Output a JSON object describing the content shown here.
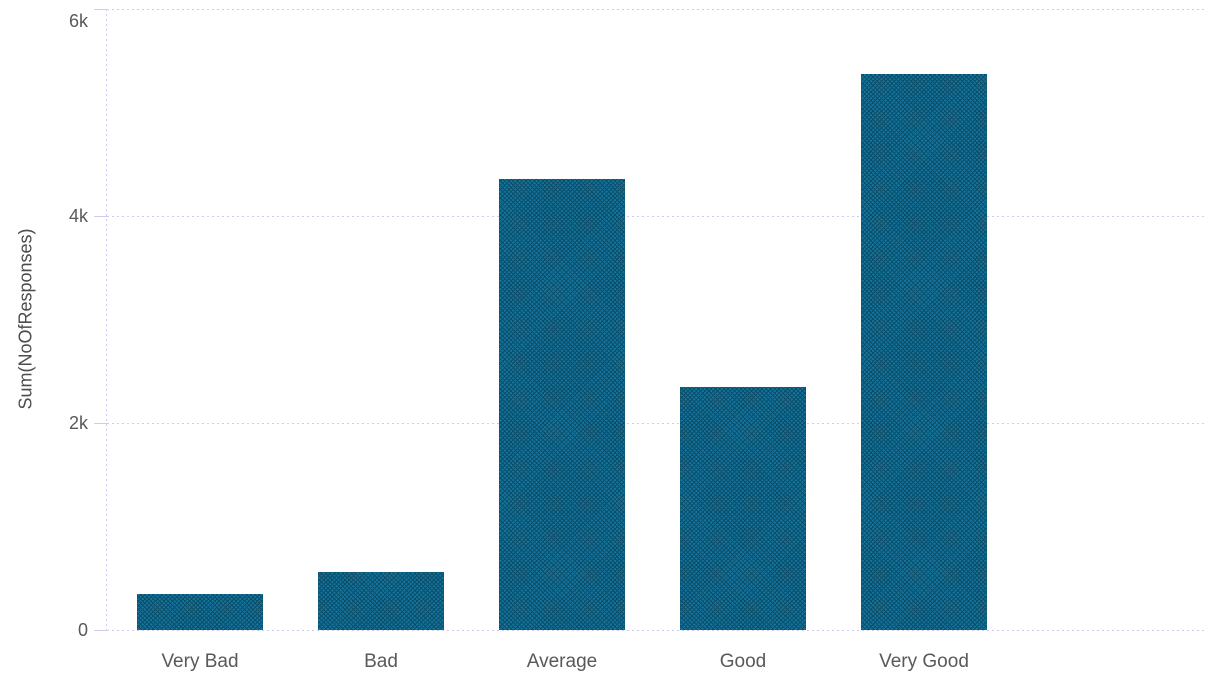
{
  "chart_data": {
    "type": "bar",
    "title": "",
    "ylabel": "Sum(NoOfResponses)",
    "xlabel": "",
    "categories": [
      "Very Bad",
      "Bad",
      "Average",
      "Good",
      "Very Good"
    ],
    "values": [
      350,
      560,
      4360,
      2350,
      5370
    ],
    "series": [
      {
        "name": "Sum(NoOfResponses)",
        "values": [
          350,
          560,
          4360,
          2350,
          5370
        ]
      }
    ],
    "ylim": [
      0,
      6000
    ],
    "yticks": [
      {
        "value": 0,
        "label": "0"
      },
      {
        "value": 2000,
        "label": "2k"
      },
      {
        "value": 4000,
        "label": "4k"
      },
      {
        "value": 6000,
        "label": "6k"
      }
    ],
    "grid": "horizontal-dotted",
    "legend": "none"
  },
  "colors": {
    "background": "#ffffff",
    "bar_fill": "#16749b",
    "bar_hatch": "#0b4e6b",
    "grid_line": "#ccccf0",
    "tick_label": "#595959",
    "category_label": "#595959",
    "axis_title": "#4c4c4c"
  }
}
